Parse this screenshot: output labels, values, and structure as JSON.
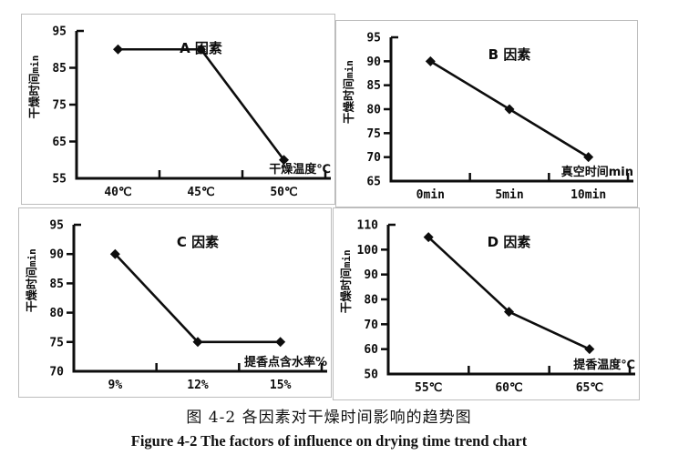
{
  "caption": {
    "zh": "图 4-2 各因素对干燥时间影响的趋势图",
    "en": "Figure 4-2 The factors of influence on drying time trend chart"
  },
  "chart_data": [
    {
      "type": "line",
      "panel": "A",
      "title": "A 因素",
      "xlabel": "干燥温度℃",
      "ylabel": "干燥时间",
      "ylabel_unit": "min",
      "categories": [
        "40℃",
        "45℃",
        "50℃"
      ],
      "values": [
        90,
        90,
        60
      ],
      "yticks": [
        95,
        85,
        75,
        65,
        55
      ],
      "ylim": [
        55,
        95
      ],
      "marker": "diamond",
      "line_color": "#0d0d0d",
      "grid": false,
      "legend": "none"
    },
    {
      "type": "line",
      "panel": "B",
      "title": "B 因素",
      "xlabel": "真空时间min",
      "ylabel": "干燥时间",
      "ylabel_unit": "min",
      "categories": [
        "0min",
        "5min",
        "10min"
      ],
      "values": [
        90,
        80,
        70
      ],
      "yticks": [
        95,
        90,
        85,
        80,
        75,
        70,
        65
      ],
      "ylim": [
        65,
        95
      ],
      "marker": "diamond",
      "line_color": "#0d0d0d",
      "grid": false,
      "legend": "none"
    },
    {
      "type": "line",
      "panel": "C",
      "title": "C 因素",
      "xlabel": "提香点含水率%",
      "ylabel": "干燥时间",
      "ylabel_unit": "min",
      "categories": [
        "9%",
        "12%",
        "15%"
      ],
      "values": [
        90,
        75,
        75
      ],
      "yticks": [
        95,
        90,
        85,
        80,
        75,
        70
      ],
      "ylim": [
        70,
        95
      ],
      "marker": "diamond",
      "line_color": "#0d0d0d",
      "grid": false,
      "legend": "none"
    },
    {
      "type": "line",
      "panel": "D",
      "title": "D 因素",
      "xlabel": "提香温度℃",
      "ylabel": "干燥时间",
      "ylabel_unit": "min",
      "categories": [
        "55℃",
        "60℃",
        "65℃"
      ],
      "values": [
        105,
        75,
        60
      ],
      "yticks": [
        110,
        100,
        90,
        80,
        70,
        60,
        50
      ],
      "ylim": [
        50,
        110
      ],
      "marker": "diamond",
      "line_color": "#0d0d0d",
      "grid": false,
      "legend": "none"
    }
  ]
}
